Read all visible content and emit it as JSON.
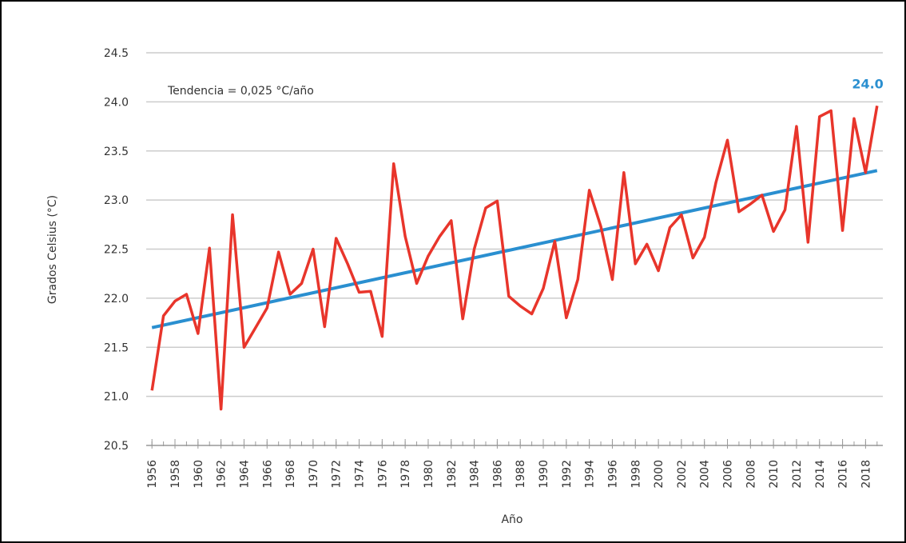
{
  "chart_data": {
    "type": "line",
    "ylabel": "Grados Celsius (°C)",
    "xlabel": "Año",
    "annotation": "Tendencia = 0,025 °C/año",
    "x": [
      1956,
      1957,
      1958,
      1959,
      1960,
      1961,
      1962,
      1963,
      1964,
      1965,
      1966,
      1967,
      1968,
      1969,
      1970,
      1971,
      1972,
      1973,
      1974,
      1975,
      1976,
      1977,
      1978,
      1979,
      1980,
      1981,
      1982,
      1983,
      1984,
      1985,
      1986,
      1987,
      1988,
      1989,
      1990,
      1991,
      1992,
      1993,
      1994,
      1995,
      1996,
      1997,
      1998,
      1999,
      2000,
      2001,
      2002,
      2003,
      2004,
      2005,
      2006,
      2007,
      2008,
      2009,
      2010,
      2011,
      2012,
      2013,
      2014,
      2015,
      2016,
      2017,
      2018,
      2019
    ],
    "series": [
      {
        "color": "#e8352b",
        "values": [
          21.06,
          21.82,
          21.97,
          22.04,
          21.64,
          22.51,
          20.87,
          22.85,
          21.5,
          21.7,
          21.9,
          22.47,
          22.04,
          22.15,
          22.5,
          21.71,
          22.61,
          22.35,
          22.06,
          22.07,
          21.61,
          23.37,
          22.63,
          22.15,
          22.43,
          22.63,
          22.79,
          21.79,
          22.5,
          22.92,
          22.99,
          22.02,
          21.92,
          21.84,
          22.1,
          22.58,
          21.8,
          22.19,
          23.1,
          22.73,
          22.19,
          23.28,
          22.35,
          22.55,
          22.28,
          22.72,
          22.85,
          22.41,
          22.62,
          23.18,
          23.61,
          22.88,
          22.96,
          23.05,
          22.68,
          22.9,
          23.75,
          22.57,
          23.85,
          23.91,
          22.69,
          23.83,
          23.28,
          23.96
        ],
        "value_labels": [
          null,
          null,
          null,
          null,
          null,
          null,
          null,
          null,
          null,
          null,
          null,
          null,
          null,
          null,
          null,
          null,
          null,
          null,
          null,
          null,
          null,
          null,
          null,
          null,
          null,
          null,
          null,
          null,
          null,
          null,
          null,
          null,
          null,
          null,
          null,
          null,
          null,
          null,
          null,
          null,
          null,
          null,
          null,
          null,
          null,
          null,
          null,
          null,
          null,
          null,
          null,
          null,
          null,
          null,
          null,
          null,
          null,
          null,
          null,
          null,
          null,
          null,
          null,
          "24.0"
        ],
        "label_color": "#2a8fd0"
      }
    ],
    "trend": {
      "x": [
        1956,
        2019
      ],
      "values": [
        21.7,
        23.3
      ],
      "color": "#2a8fd0"
    },
    "xlim": [
      1955.5,
      2019.5
    ],
    "xticks": [
      1956,
      1958,
      1960,
      1962,
      1964,
      1966,
      1968,
      1970,
      1972,
      1974,
      1976,
      1978,
      1980,
      1982,
      1984,
      1986,
      1988,
      1990,
      1992,
      1994,
      1996,
      1998,
      2000,
      2002,
      2004,
      2006,
      2008,
      2010,
      2012,
      2014,
      2016,
      2018
    ],
    "ylim": [
      20.5,
      24.5
    ],
    "yticks": [
      20.5,
      {
        "value": 21,
        "label": "21.0"
      },
      21.5,
      {
        "value": 22,
        "label": "22.0"
      },
      22.5,
      {
        "value": 23,
        "label": "23.0"
      },
      23.5,
      {
        "value": 24,
        "label": "24.0"
      },
      24.5
    ],
    "grid": true
  }
}
